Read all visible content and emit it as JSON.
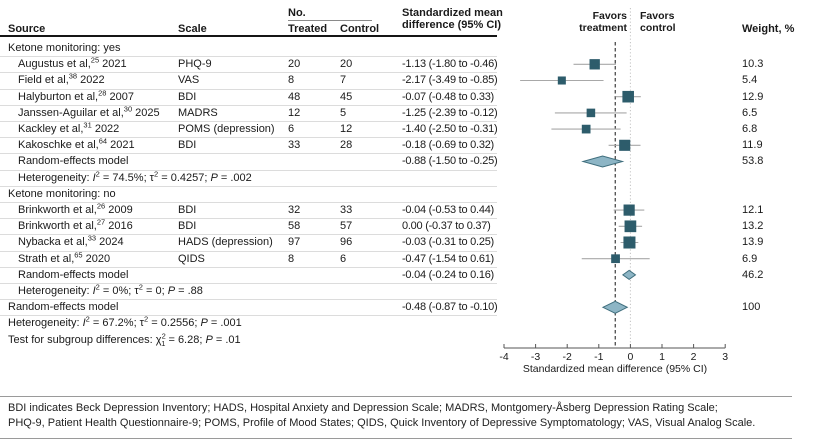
{
  "table": {
    "headers": {
      "source": "Source",
      "scale": "Scale",
      "no": "No.",
      "treated": "Treated",
      "control": "Control",
      "smd_line1": "Standardized mean",
      "smd_line2": "difference (95% CI)",
      "weight": "Weight, %"
    }
  },
  "plot_labels": {
    "favors_treatment": [
      "Favors",
      "treatment"
    ],
    "favors_control": [
      "Favors",
      "control"
    ]
  },
  "chart_data": {
    "type": "scatter",
    "variant": "forest-plot-meta-analysis",
    "xlabel": "Standardized mean difference (95% CI)",
    "xlim": [
      -4,
      3
    ],
    "xticks": [
      -4,
      -3,
      -2,
      -1,
      0,
      1,
      2,
      3
    ],
    "null_line_x": 0,
    "overall_effect_x": -0.48,
    "groups": [
      {
        "label": "Ketone monitoring: yes",
        "studies": [
          {
            "source": "Augustus et al,",
            "ref": "25",
            "year": "2021",
            "scale": "PHQ-9",
            "n_treated": "20",
            "n_control": "20",
            "smd": "-1.13 (-1.80 to -0.46)",
            "est": -1.13,
            "lo": -1.8,
            "hi": -0.46,
            "weight": "10.3"
          },
          {
            "source": "Field et al,",
            "ref": "38",
            "year": "2022",
            "scale": "VAS",
            "n_treated": "8",
            "n_control": "7",
            "smd": "-2.17 (-3.49 to -0.85)",
            "est": -2.17,
            "lo": -3.49,
            "hi": -0.85,
            "weight": "5.4"
          },
          {
            "source": "Halyburton et al,",
            "ref": "28",
            "year": "2007",
            "scale": "BDI",
            "n_treated": "48",
            "n_control": "45",
            "smd": "-0.07 (-0.48 to 0.33)",
            "est": -0.07,
            "lo": -0.48,
            "hi": 0.33,
            "weight": "12.9"
          },
          {
            "source": "Janssen-Aguilar et al,",
            "ref": "30",
            "year": "2025",
            "scale": "MADRS",
            "n_treated": "12",
            "n_control": "5",
            "smd": "-1.25 (-2.39 to -0.12)",
            "est": -1.25,
            "lo": -2.39,
            "hi": -0.12,
            "weight": "6.5"
          },
          {
            "source": "Kackley et al,",
            "ref": "31",
            "year": "2022",
            "scale": "POMS (depression)",
            "n_treated": "6",
            "n_control": "12",
            "smd": "-1.40 (-2.50 to -0.31)",
            "est": -1.4,
            "lo": -2.5,
            "hi": -0.31,
            "weight": "6.8"
          },
          {
            "source": "Kakoschke et al,",
            "ref": "64",
            "year": "2021",
            "scale": "BDI",
            "n_treated": "33",
            "n_control": "28",
            "smd": "-0.18 (-0.69 to 0.32)",
            "est": -0.18,
            "lo": -0.69,
            "hi": 0.32,
            "weight": "11.9"
          }
        ],
        "summary": {
          "label": "Random-effects model",
          "smd": "-0.88 (-1.50 to -0.25)",
          "est": -0.88,
          "lo": -1.5,
          "hi": -0.25,
          "weight": "53.8"
        },
        "heterogeneity": [
          {
            "t": "Heterogeneity: "
          },
          {
            "t": "I",
            "s": "i"
          },
          {
            "t": "2",
            "s": "sup"
          },
          {
            "t": " = 74.5%; τ"
          },
          {
            "t": "2",
            "s": "sup"
          },
          {
            "t": " = 0.4257; "
          },
          {
            "t": "P",
            "s": "i"
          },
          {
            "t": " = .002"
          }
        ]
      },
      {
        "label": "Ketone monitoring: no",
        "studies": [
          {
            "source": "Brinkworth et al,",
            "ref": "26",
            "year": "2009",
            "scale": "BDI",
            "n_treated": "32",
            "n_control": "33",
            "smd": "-0.04 (-0.53 to 0.44)",
            "est": -0.04,
            "lo": -0.53,
            "hi": 0.44,
            "weight": "12.1"
          },
          {
            "source": "Brinkworth et al,",
            "ref": "27",
            "year": "2016",
            "scale": "BDI",
            "n_treated": "58",
            "n_control": "57",
            "smd": "0.00 (-0.37 to 0.37)",
            "est": 0.0,
            "lo": -0.37,
            "hi": 0.37,
            "weight": "13.2"
          },
          {
            "source": "Nybacka et al,",
            "ref": "33",
            "year": "2024",
            "scale": "HADS (depression)",
            "n_treated": "97",
            "n_control": "96",
            "smd": "-0.03 (-0.31 to 0.25)",
            "est": -0.03,
            "lo": -0.31,
            "hi": 0.25,
            "weight": "13.9"
          },
          {
            "source": "Strath et al,",
            "ref": "65",
            "year": "2020",
            "scale": "QIDS",
            "n_treated": "8",
            "n_control": "6",
            "smd": "-0.47 (-1.54 to 0.61)",
            "est": -0.47,
            "lo": -1.54,
            "hi": 0.61,
            "weight": "6.9"
          }
        ],
        "summary": {
          "label": "Random-effects model",
          "smd": "-0.04 (-0.24 to 0.16)",
          "est": -0.04,
          "lo": -0.24,
          "hi": 0.16,
          "weight": "46.2"
        },
        "heterogeneity": [
          {
            "t": "Heterogeneity: "
          },
          {
            "t": "I",
            "s": "i"
          },
          {
            "t": "2",
            "s": "sup"
          },
          {
            "t": " = 0%; τ"
          },
          {
            "t": "2",
            "s": "sup"
          },
          {
            "t": " = 0; "
          },
          {
            "t": "P",
            "s": "i"
          },
          {
            "t": " = .88"
          }
        ]
      }
    ],
    "overall": {
      "label": "Random-effects model",
      "smd": "-0.48 (-0.87 to -0.10)",
      "est": -0.48,
      "lo": -0.87,
      "hi": -0.1,
      "weight": "100"
    },
    "overall_heterogeneity": [
      {
        "t": "Heterogeneity: "
      },
      {
        "t": "I",
        "s": "i"
      },
      {
        "t": "2",
        "s": "sup"
      },
      {
        "t": " = 67.2%; τ"
      },
      {
        "t": "2",
        "s": "sup"
      },
      {
        "t": " = 0.2556; "
      },
      {
        "t": "P",
        "s": "i"
      },
      {
        "t": " = .001"
      }
    ],
    "subgroup_test": [
      {
        "t": "Test for subgroup differences: "
      },
      {
        "t": "χ"
      },
      {
        "t": "2",
        "s": "sup"
      },
      {
        "t": "1",
        "s": "substack"
      },
      {
        "t": " = 6.28; "
      },
      {
        "t": "P",
        "s": "i"
      },
      {
        "t": " = .01"
      }
    ]
  },
  "colors": {
    "marker_square": "#2d5c6b",
    "diamond_fill": "#8db5c5",
    "diamond_stroke": "#3f6e7d",
    "ci_line": "#a8a8a8",
    "null_line": "#c2c2c2",
    "overall_line": "#2b2b2b",
    "separator": "#dcdcdc",
    "header_rule": "#151515",
    "axis": "#555555"
  },
  "footnote": {
    "line1": "BDI indicates Beck Depression Inventory; HADS, Hospital Anxiety and Depression Scale; MADRS, Montgomery-Åsberg Depression Rating Scale;",
    "line2": "PHQ-9, Patient Health Questionnaire-9; POMS, Profile of Mood States; QIDS, Quick Inventory of Depressive Symptomatology; VAS, Visual Analog Scale."
  }
}
